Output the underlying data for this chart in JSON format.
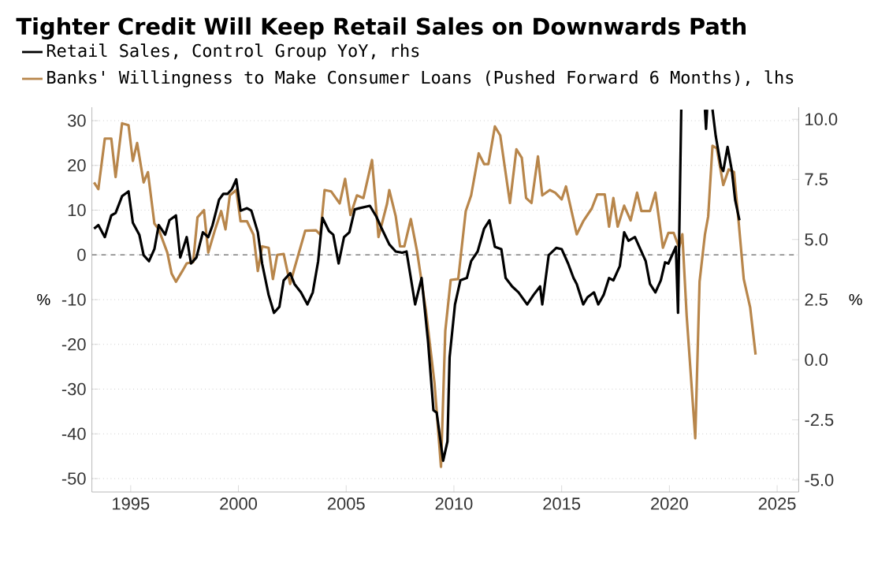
{
  "chart_data": {
    "type": "line",
    "title": "Tighter Credit Will Keep Retail Sales on Downwards Path",
    "ylabel": "%",
    "y2label": "%",
    "xlim": [
      1993.2,
      2026.0
    ],
    "xticks": [
      1995,
      2000,
      2005,
      2010,
      2015,
      2020,
      2025
    ],
    "ylim": [
      -53,
      33
    ],
    "yticks": [
      -50,
      -40,
      -30,
      -20,
      -10,
      0,
      10,
      20,
      30
    ],
    "y2lim": [
      -5.5,
      10.5
    ],
    "y2ticks": [
      {
        "value": -5,
        "label": "-5.0"
      },
      {
        "value": -2.5,
        "label": "-2.5"
      },
      {
        "value": 0,
        "label": "0.0"
      },
      {
        "value": 2.5,
        "label": "2.5"
      },
      {
        "value": 5,
        "label": "5.0"
      },
      {
        "value": 7.5,
        "label": "7.5"
      },
      {
        "value": 10,
        "label": "10.0"
      }
    ],
    "grid": "y",
    "legend": "top left",
    "ref_lines": [
      {
        "axis": "y",
        "value": 0,
        "label": null,
        "color": "#808080",
        "line_style": "dashed"
      }
    ],
    "series": [
      {
        "name": "Retail Sales, Control Group YoY, rhs",
        "color": "#000000",
        "axis": "y2",
        "x": [
          1993.3,
          1993.5,
          1993.8,
          1994.1,
          1994.3,
          1994.6,
          1994.9,
          1995.1,
          1995.4,
          1995.6,
          1995.85,
          1996.1,
          1996.3,
          1996.6,
          1996.8,
          1997.1,
          1997.3,
          1997.6,
          1997.8,
          1998.05,
          1998.35,
          1998.6,
          1998.8,
          1999.1,
          1999.3,
          1999.5,
          1999.7,
          1999.9,
          2000.1,
          2000.4,
          2000.6,
          2000.9,
          2001.1,
          2001.4,
          2001.65,
          2001.9,
          2002.1,
          2002.4,
          2002.6,
          2002.9,
          2003.2,
          2003.45,
          2003.7,
          2003.9,
          2004.2,
          2004.4,
          2004.65,
          2004.9,
          2005.15,
          2005.4,
          2005.6,
          2006.1,
          2006.4,
          2006.6,
          2007.0,
          2007.3,
          2007.6,
          2007.8,
          2008.2,
          2008.5,
          2008.8,
          2009.05,
          2009.2,
          2009.5,
          2009.7,
          2009.8,
          2010.05,
          2010.3,
          2010.6,
          2010.8,
          2011.1,
          2011.4,
          2011.65,
          2011.9,
          2012.2,
          2012.4,
          2012.7,
          2013.0,
          2013.4,
          2013.7,
          2014.0,
          2014.1,
          2014.4,
          2014.75,
          2015.0,
          2015.3,
          2015.55,
          2015.7,
          2016.0,
          2016.2,
          2016.5,
          2016.7,
          2016.95,
          2017.2,
          2017.4,
          2017.7,
          2017.9,
          2018.1,
          2018.4,
          2018.6,
          2018.9,
          2019.1,
          2019.35,
          2019.6,
          2019.8,
          2019.95,
          2020.2,
          2020.3,
          2020.4,
          2020.55,
          2021.0,
          2021.65,
          2021.7,
          2021.75,
          2021.85,
          2022.0,
          2022.15,
          2022.4,
          2022.5,
          2022.7,
          2022.9,
          2023.05,
          2023.25
        ],
        "values": [
          5.45,
          5.6,
          5.1,
          6.0,
          6.1,
          6.8,
          7.0,
          5.7,
          5.2,
          4.35,
          4.1,
          4.6,
          5.6,
          5.2,
          5.8,
          6.0,
          4.25,
          5.1,
          4.0,
          4.25,
          5.3,
          5.1,
          5.6,
          6.65,
          6.9,
          6.9,
          7.1,
          7.5,
          6.2,
          6.3,
          6.2,
          5.3,
          4.0,
          2.7,
          1.95,
          2.2,
          3.3,
          3.6,
          3.15,
          2.8,
          2.3,
          2.8,
          4.1,
          5.9,
          5.35,
          5.2,
          4.0,
          5.1,
          5.3,
          6.25,
          6.3,
          6.4,
          5.95,
          5.55,
          4.8,
          4.5,
          4.45,
          4.5,
          2.3,
          3.4,
          0.75,
          -2.1,
          -2.2,
          -4.2,
          -3.4,
          0.1,
          2.3,
          3.3,
          3.4,
          4.1,
          4.5,
          5.45,
          5.8,
          4.7,
          4.6,
          3.4,
          3.05,
          2.8,
          2.3,
          2.7,
          3.05,
          2.3,
          4.35,
          4.65,
          4.6,
          4.0,
          3.4,
          3.15,
          2.3,
          2.6,
          2.8,
          2.3,
          2.7,
          3.4,
          3.3,
          3.9,
          5.3,
          4.95,
          5.1,
          4.7,
          4.1,
          3.15,
          2.8,
          3.3,
          4.05,
          4.0,
          4.5,
          4.7,
          1.95,
          10.4,
          null,
          10.4,
          9.6,
          10.4,
          null,
          10.4,
          9.3,
          8.0,
          7.85,
          8.85,
          7.85,
          6.65,
          5.8
        ]
      },
      {
        "name": "Banks' Willingness to Make Consumer Loans (Pushed Forward 6 Months), lhs",
        "color": "#b8864b",
        "x": [
          1993.3,
          1993.5,
          1993.8,
          1994.1,
          1994.3,
          1994.6,
          1994.9,
          1995.1,
          1995.3,
          1995.6,
          1995.8,
          1996.1,
          1996.3,
          1996.7,
          1996.9,
          1997.1,
          1997.4,
          1997.6,
          1997.9,
          1998.1,
          1998.4,
          1998.6,
          1998.9,
          1999.2,
          1999.4,
          1999.6,
          1999.9,
          2000.1,
          2000.4,
          2000.7,
          2000.9,
          2001.1,
          2001.4,
          2001.6,
          2001.8,
          2002.1,
          2002.4,
          2002.6,
          2003.1,
          2003.6,
          2003.8,
          2004.0,
          2004.3,
          2004.7,
          2004.95,
          2005.2,
          2005.5,
          2005.8,
          2006.2,
          2006.5,
          2006.9,
          2007.0,
          2007.3,
          2007.5,
          2007.7,
          2008.0,
          2008.3,
          2008.7,
          2009.1,
          2009.4,
          2009.6,
          2009.85,
          2010.2,
          2010.55,
          2010.8,
          2011.15,
          2011.4,
          2011.6,
          2011.9,
          2012.15,
          2012.6,
          2012.9,
          2013.15,
          2013.35,
          2013.6,
          2013.9,
          2014.1,
          2014.45,
          2014.7,
          2015.0,
          2015.2,
          2015.7,
          2016.0,
          2016.4,
          2016.65,
          2017.0,
          2017.2,
          2017.4,
          2017.6,
          2017.9,
          2018.2,
          2018.5,
          2018.7,
          2019.1,
          2019.35,
          2019.7,
          2019.95,
          2020.2,
          2020.45,
          2020.6,
          2020.8,
          2021.2,
          2021.4,
          2021.65,
          2021.8,
          2022.0,
          2022.2,
          2022.5,
          2022.75,
          2023.0,
          2023.2,
          2023.45,
          2023.75,
          2024.0
        ],
        "values": [
          16.2,
          14.7,
          26,
          26,
          17.4,
          29.4,
          29,
          21,
          25,
          16.2,
          18.5,
          7,
          5.7,
          0.5,
          -4.2,
          -6,
          -3.6,
          -1.9,
          -1.6,
          8.4,
          10,
          0.5,
          5.4,
          9.8,
          5.7,
          13.3,
          14.5,
          7.5,
          7.5,
          4.5,
          -3.6,
          1.9,
          1.6,
          -5.4,
          0,
          0.2,
          -6.5,
          -3,
          5.4,
          5.5,
          4.5,
          14.5,
          14.2,
          11.5,
          17,
          8.9,
          13.3,
          12.7,
          21.2,
          4,
          11.5,
          14.5,
          8.6,
          1.9,
          1.9,
          8,
          0.5,
          -12.4,
          -28.7,
          -47.4,
          -17,
          -5.6,
          -5.4,
          9.8,
          13.3,
          22.7,
          20.3,
          20.3,
          28.7,
          26.7,
          11.6,
          23.6,
          21.7,
          12.7,
          11.6,
          22,
          13.3,
          14.5,
          13.9,
          12.4,
          15.3,
          4.6,
          7.5,
          10.4,
          13.5,
          13.5,
          6.3,
          12.7,
          6.3,
          11,
          7.7,
          13.9,
          9.8,
          9.8,
          13.9,
          1.6,
          4.9,
          4.9,
          1.6,
          4.6,
          -13.5,
          -41,
          -6,
          4.6,
          8.6,
          24.4,
          23.8,
          15.6,
          19.1,
          18.5,
          8.1,
          -5.4,
          -11.8,
          -22.3
        ]
      }
    ]
  }
}
